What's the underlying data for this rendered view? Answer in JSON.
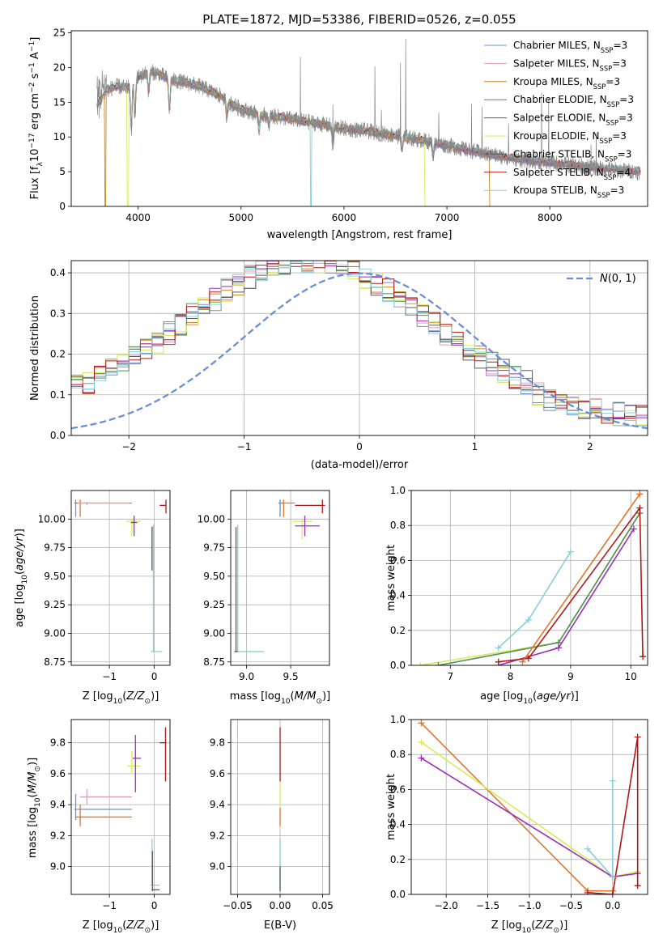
{
  "colors": {
    "Chabrier MILES": "#6a8fd8",
    "Salpeter MILES": "#e49ac0",
    "Kroupa MILES": "#c8861e",
    "Chabrier ELODIE": "#4f8f58",
    "Salpeter ELODIE": "#9b2fb8",
    "Kroupa ELODIE": "#d9ea5a",
    "Chabrier STELIB": "#5a5a5a",
    "Salpeter STELIB": "#b01818",
    "Kroupa STELIB": "#86d0d8",
    "orange": "#e0762e",
    "normal": "#6a8fd8"
  },
  "chart_data": [
    {
      "id": "spectrum",
      "type": "line",
      "title": "PLATE=1872, MJD=53386, FIBERID=0526, z=0.055",
      "xlabel": "wavelength [Angstrom, rest frame]",
      "ylabel": "Flux [f",
      "ylabel_parts": [
        "Flux [f",
        "λ",
        "10",
        "−17",
        " erg cm",
        "−2",
        " s",
        "−1",
        " A",
        "−1",
        "]"
      ],
      "xlim": [
        3350,
        8950
      ],
      "ylim": [
        0,
        25.3
      ],
      "xticks": [
        4000,
        5000,
        6000,
        7000,
        8000
      ],
      "yticks": [
        0,
        5,
        10,
        15,
        20,
        25
      ],
      "legend": [
        {
          "name": "Chabrier MILES",
          "nssp": "3"
        },
        {
          "name": "Salpeter MILES",
          "nssp": "3"
        },
        {
          "name": "Kroupa MILES",
          "nssp": "3"
        },
        {
          "name": "Chabrier ELODIE",
          "nssp": "3"
        },
        {
          "name": "Salpeter ELODIE",
          "nssp": "3"
        },
        {
          "name": "Kroupa ELODIE",
          "nssp": "3"
        },
        {
          "name": "Chabrier STELIB",
          "nssp": "3"
        },
        {
          "name": "Salpeter STELIB",
          "nssp": "4"
        },
        {
          "name": "Kroupa STELIB",
          "nssp": "3"
        }
      ],
      "legend_label_prefix": ", N",
      "legend_label_sub": "SSP",
      "legend_label_suffix": "=",
      "continuum": [
        [
          3600,
          14.5
        ],
        [
          3700,
          16.8
        ],
        [
          3800,
          17.3
        ],
        [
          3900,
          17.0
        ],
        [
          4000,
          18.6
        ],
        [
          4100,
          19.4
        ],
        [
          4200,
          19.2
        ],
        [
          4300,
          18.2
        ],
        [
          4400,
          18.0
        ],
        [
          4500,
          17.7
        ],
        [
          4600,
          17.3
        ],
        [
          4700,
          16.6
        ],
        [
          4800,
          15.9
        ],
        [
          4900,
          14.8
        ],
        [
          5000,
          14.0
        ],
        [
          5200,
          13.2
        ],
        [
          5400,
          12.8
        ],
        [
          5600,
          12.3
        ],
        [
          5800,
          11.8
        ],
        [
          6000,
          11.2
        ],
        [
          6200,
          10.9
        ],
        [
          6400,
          10.4
        ],
        [
          6600,
          10.0
        ],
        [
          6800,
          9.4
        ],
        [
          7000,
          8.8
        ],
        [
          7200,
          8.1
        ],
        [
          7400,
          7.5
        ],
        [
          7600,
          7.0
        ],
        [
          7800,
          6.6
        ],
        [
          8000,
          6.3
        ],
        [
          8200,
          5.9
        ],
        [
          8400,
          5.6
        ],
        [
          8600,
          5.3
        ],
        [
          8850,
          5.0
        ]
      ],
      "absorptions": [
        [
          3934,
          6.5
        ],
        [
          3969,
          5.0
        ],
        [
          4102,
          3.0
        ],
        [
          4304,
          4.5
        ],
        [
          4861,
          2.5
        ],
        [
          5175,
          2.5
        ],
        [
          5270,
          1.5
        ],
        [
          5892,
          3.0
        ],
        [
          6563,
          2.0
        ],
        [
          6867,
          2.0
        ]
      ],
      "emissions": [
        [
          5577,
          8.0
        ],
        [
          5892,
          6.0
        ],
        [
          6300,
          9.0
        ],
        [
          6364,
          4.0
        ],
        [
          6550,
          12.0
        ],
        [
          6600,
          14.0
        ],
        [
          6920,
          5.0
        ],
        [
          7240,
          8.0
        ],
        [
          7340,
          7.0
        ],
        [
          7600,
          5.0
        ],
        [
          7920,
          10.0
        ],
        [
          7990,
          8.0
        ],
        [
          8400,
          4.0
        ],
        [
          8450,
          5.0
        ],
        [
          8900,
          3.0
        ]
      ],
      "dropouts": [
        {
          "series": "Kroupa MILES",
          "x": [
            3680,
            7420
          ]
        },
        {
          "series": "Kroupa ELODIE",
          "x": [
            3900,
            6790
          ]
        },
        {
          "series": "Kroupa STELIB",
          "x": [
            5680
          ]
        }
      ]
    },
    {
      "id": "residuals",
      "type": "histogram",
      "xlabel": "(data-model)/error",
      "ylabel": "Normed distribution",
      "xlim": [
        -2.5,
        2.5
      ],
      "ylim": [
        0,
        0.43
      ],
      "xticks": [
        -2,
        -1,
        0,
        1,
        2
      ],
      "xtick_labels": [
        "−2",
        "−1",
        "0",
        "1",
        "2"
      ],
      "yticks": [
        0.0,
        0.1,
        0.2,
        0.3,
        0.4
      ],
      "ytick_labels": [
        "0.0",
        "0.1",
        "0.2",
        "0.3",
        "0.4"
      ],
      "grid": true,
      "legend": "N(0,1)",
      "legend_location": "top-right",
      "bin_width": 0.1,
      "bin_start": -2.5,
      "series_order": [
        "Chabrier MILES",
        "Salpeter MILES",
        "Kroupa MILES",
        "Chabrier ELODIE",
        "Salpeter ELODIE",
        "Kroupa ELODIE",
        "Chabrier STELIB",
        "Salpeter STELIB",
        "Kroupa STELIB"
      ]
    },
    {
      "id": "age_vs_Z",
      "type": "errorbar",
      "xlabel": "Z [log10(Z/Z⊙)]",
      "ylabel": "age [log10(age/yr)]",
      "xlim": [
        -1.85,
        0.35
      ],
      "ylim": [
        8.72,
        10.25
      ],
      "xticks": [
        -1,
        0
      ],
      "xtick_labels": [
        "−1",
        "0"
      ],
      "yticks": [
        8.75,
        9.0,
        9.25,
        9.5,
        9.75,
        10.0
      ],
      "ytick_labels": [
        "8.75",
        "9.00",
        "9.25",
        "9.50",
        "9.75",
        "10.00"
      ],
      "points": [
        {
          "c": "Chabrier MILES",
          "x": -1.75,
          "y": 10.14,
          "xe": [
            -1.78,
            -1.72
          ],
          "ye": [
            10.02,
            10.17
          ]
        },
        {
          "c": "orange",
          "x": -1.65,
          "y": 10.14,
          "xe": [
            -1.78,
            -0.5
          ],
          "ye": [
            10.02,
            10.17
          ]
        },
        {
          "c": "Salpeter MILES",
          "x": -1.5,
          "y": 10.14,
          "xe": [
            -1.7,
            -0.55
          ],
          "ye": [
            10.12,
            10.15
          ]
        },
        {
          "c": "Kroupa ELODIE",
          "x": -0.5,
          "y": 9.98,
          "xe": [
            -0.62,
            -0.3
          ],
          "ye": [
            9.85,
            10.0
          ]
        },
        {
          "c": "Salpeter ELODIE",
          "x": -0.45,
          "y": 9.97,
          "xe": [
            -0.52,
            -0.38
          ],
          "ye": [
            9.85,
            10.03
          ]
        },
        {
          "c": "Salpeter STELIB",
          "x": 0.26,
          "y": 10.12,
          "xe": [
            0.12,
            0.27
          ],
          "ye": [
            10.05,
            10.17
          ]
        },
        {
          "c": "Chabrier STELIB",
          "x": -0.05,
          "y": 9.93,
          "xe": [
            -0.06,
            -0.04
          ],
          "ye": [
            9.55,
            9.93
          ]
        },
        {
          "c": "Kroupa STELIB",
          "x": -0.02,
          "y": 8.84,
          "xe": [
            -0.08,
            0.18
          ],
          "ye": [
            8.84,
            9.95
          ]
        }
      ]
    },
    {
      "id": "age_vs_mass",
      "type": "errorbar",
      "xlabel": "mass [log10(M/M⊙)]",
      "ylabel": "",
      "xlim": [
        8.82,
        9.94
      ],
      "ylim": [
        8.72,
        10.25
      ],
      "xticks": [
        9.0,
        9.5
      ],
      "xtick_labels": [
        "9.0",
        "9.5"
      ],
      "yticks": [
        8.75,
        9.0,
        9.25,
        9.5,
        9.75,
        10.0
      ],
      "ytick_labels": [
        "8.75",
        "9.00",
        "9.25",
        "9.50",
        "9.75",
        "10.00"
      ],
      "points": [
        {
          "c": "Salpeter STELIB",
          "x": 9.86,
          "y": 10.12,
          "xe": [
            9.55,
            9.89
          ],
          "ye": [
            10.05,
            10.17
          ]
        },
        {
          "c": "orange",
          "x": 9.42,
          "y": 10.14,
          "xe": [
            9.38,
            9.55
          ],
          "ye": [
            10.02,
            10.17
          ]
        },
        {
          "c": "Chabrier MILES",
          "x": 9.38,
          "y": 10.14,
          "xe": [
            9.36,
            9.42
          ],
          "ye": [
            10.02,
            10.17
          ]
        },
        {
          "c": "Kroupa ELODIE",
          "x": 9.63,
          "y": 9.98,
          "xe": [
            9.52,
            9.74
          ],
          "ye": [
            9.82,
            10.0
          ]
        },
        {
          "c": "Salpeter ELODIE",
          "x": 9.66,
          "y": 9.94,
          "xe": [
            9.55,
            9.83
          ],
          "ye": [
            9.85,
            10.03
          ]
        },
        {
          "c": "Kroupa STELIB",
          "x": 8.9,
          "y": 8.84,
          "xe": [
            8.87,
            9.2
          ],
          "ye": [
            8.84,
            9.95
          ]
        },
        {
          "c": "Chabrier STELIB",
          "x": 8.88,
          "y": 8.84,
          "xe": [
            8.86,
            8.9
          ],
          "ye": [
            8.84,
            9.93
          ]
        }
      ]
    },
    {
      "id": "mass_weight_vs_age",
      "type": "line",
      "xlabel": "age [log10(age/yr)]",
      "ylabel": "mass weight",
      "xlim": [
        6.35,
        10.28
      ],
      "ylim": [
        0,
        1.0
      ],
      "xticks": [
        7,
        8,
        9,
        10
      ],
      "xtick_labels": [
        "7",
        "8",
        "9",
        "10"
      ],
      "yticks": [
        0.0,
        0.2,
        0.4,
        0.6,
        0.8,
        1.0
      ],
      "ytick_labels": [
        "0.0",
        "0.2",
        "0.4",
        "0.6",
        "0.8",
        "1.0"
      ],
      "series": [
        {
          "c": "Kroupa ELODIE",
          "points": [
            [
              6.5,
              0.0
            ],
            [
              8.8,
              0.13
            ],
            [
              10.15,
              0.87
            ]
          ]
        },
        {
          "c": "Chabrier ELODIE",
          "points": [
            [
              6.8,
              0.0
            ],
            [
              8.8,
              0.13
            ],
            [
              10.15,
              0.87
            ]
          ]
        },
        {
          "c": "Salpeter ELODIE",
          "points": [
            [
              7.8,
              0.0
            ],
            [
              8.8,
              0.1
            ],
            [
              10.05,
              0.78
            ]
          ]
        },
        {
          "c": "Salpeter STELIB",
          "points": [
            [
              7.8,
              0.02
            ],
            [
              8.3,
              0.04
            ],
            [
              10.15,
              0.9
            ],
            [
              10.2,
              0.05
            ]
          ]
        },
        {
          "c": "Kroupa STELIB",
          "points": [
            [
              7.8,
              0.1
            ],
            [
              8.3,
              0.26
            ],
            [
              9.0,
              0.65
            ]
          ]
        },
        {
          "c": "orange",
          "points": [
            [
              8.2,
              0.02
            ],
            [
              10.15,
              0.98
            ]
          ]
        }
      ]
    },
    {
      "id": "mass_vs_Z",
      "type": "errorbar",
      "xlabel": "Z [log10(Z/Z⊙)]",
      "ylabel": "mass [log10(M/M⊙)]",
      "xlim": [
        -1.85,
        0.35
      ],
      "ylim": [
        8.82,
        9.95
      ],
      "xticks": [
        -1,
        0
      ],
      "xtick_labels": [
        "−1",
        "0"
      ],
      "yticks": [
        9.0,
        9.2,
        9.4,
        9.6,
        9.8
      ],
      "ytick_labels": [
        "9.0",
        "9.2",
        "9.4",
        "9.6",
        "9.8"
      ],
      "points": [
        {
          "c": "Chabrier MILES",
          "x": -1.75,
          "y": 9.37,
          "xe": [
            -1.78,
            -0.5
          ],
          "ye": [
            9.3,
            9.47
          ]
        },
        {
          "c": "orange",
          "x": -1.65,
          "y": 9.32,
          "xe": [
            -1.75,
            -0.5
          ],
          "ye": [
            9.26,
            9.4
          ]
        },
        {
          "c": "Salpeter MILES",
          "x": -1.5,
          "y": 9.45,
          "xe": [
            -1.65,
            -0.5
          ],
          "ye": [
            9.4,
            9.5
          ]
        },
        {
          "c": "Kroupa ELODIE",
          "x": -0.5,
          "y": 9.65,
          "xe": [
            -0.6,
            -0.3
          ],
          "ye": [
            9.6,
            9.75
          ]
        },
        {
          "c": "Salpeter ELODIE",
          "x": -0.42,
          "y": 9.7,
          "xe": [
            -0.48,
            -0.3
          ],
          "ye": [
            9.48,
            9.85
          ]
        },
        {
          "c": "Salpeter STELIB",
          "x": 0.25,
          "y": 9.8,
          "xe": [
            0.12,
            0.27
          ],
          "ye": [
            9.55,
            9.9
          ]
        },
        {
          "c": "Kroupa STELIB",
          "x": -0.05,
          "y": 8.88,
          "xe": [
            -0.08,
            0.12
          ],
          "ye": [
            8.88,
            9.18
          ]
        },
        {
          "c": "Chabrier STELIB",
          "x": -0.04,
          "y": 8.85,
          "xe": [
            -0.06,
            0.12
          ],
          "ye": [
            8.84,
            9.1
          ]
        }
      ]
    },
    {
      "id": "mass_vs_ebv",
      "type": "errorbar",
      "xlabel": "E(B-V)",
      "ylabel": "",
      "xlim": [
        -0.058,
        0.058
      ],
      "ylim": [
        8.82,
        9.95
      ],
      "xticks": [
        -0.05,
        0.0,
        0.05
      ],
      "xtick_labels": [
        "−0.05",
        "0.00",
        "0.05"
      ],
      "yticks": [
        9.0,
        9.2,
        9.4,
        9.6,
        9.8
      ],
      "ytick_labels": [
        "9.0",
        "9.2",
        "9.4",
        "9.6",
        "9.8"
      ],
      "vsegments": [
        {
          "c": "Salpeter STELIB",
          "x": 0.0,
          "y": [
            9.55,
            9.9
          ]
        },
        {
          "c": "Kroupa ELODIE",
          "x": 0.0,
          "y": [
            9.38,
            9.55
          ]
        },
        {
          "c": "orange",
          "x": 0.0,
          "y": [
            9.26,
            9.38
          ]
        },
        {
          "c": "Kroupa STELIB",
          "x": 0.0,
          "y": [
            8.85,
            9.18
          ]
        },
        {
          "c": "Chabrier STELIB",
          "x": 0.0,
          "y": [
            8.84,
            9.0
          ]
        }
      ]
    },
    {
      "id": "mass_weight_vs_Z",
      "type": "line",
      "xlabel": "Z [log10(Z/Z⊙)]",
      "ylabel": "mass weight",
      "xlim": [
        -2.42,
        0.42
      ],
      "ylim": [
        0,
        1.0
      ],
      "xticks": [
        -2.0,
        -1.5,
        -1.0,
        -0.5,
        0.0
      ],
      "xtick_labels": [
        "−2.0",
        "−1.5",
        "−1.0",
        "−0.5",
        "0.0"
      ],
      "yticks": [
        0.0,
        0.2,
        0.4,
        0.6,
        0.8,
        1.0
      ],
      "ytick_labels": [
        "0.0",
        "0.2",
        "0.4",
        "0.6",
        "0.8",
        "1.0"
      ],
      "series": [
        {
          "c": "orange",
          "points": [
            [
              -2.3,
              0.98
            ],
            [
              -0.3,
              0.02
            ],
            [
              0.0,
              0.02
            ]
          ]
        },
        {
          "c": "Kroupa ELODIE",
          "points": [
            [
              -2.3,
              0.87
            ],
            [
              0.0,
              0.1
            ],
            [
              0.3,
              0.13
            ]
          ]
        },
        {
          "c": "Salpeter ELODIE",
          "points": [
            [
              -2.3,
              0.78
            ],
            [
              0.0,
              0.1
            ],
            [
              0.3,
              0.12
            ]
          ]
        },
        {
          "c": "Salpeter STELIB",
          "points": [
            [
              -0.3,
              0.01
            ],
            [
              0.0,
              0.0
            ],
            [
              0.3,
              0.9
            ],
            [
              0.3,
              0.05
            ]
          ]
        },
        {
          "c": "Kroupa STELIB",
          "points": [
            [
              -0.3,
              0.26
            ],
            [
              0.0,
              0.1
            ],
            [
              0.0,
              0.65
            ]
          ]
        }
      ]
    }
  ]
}
